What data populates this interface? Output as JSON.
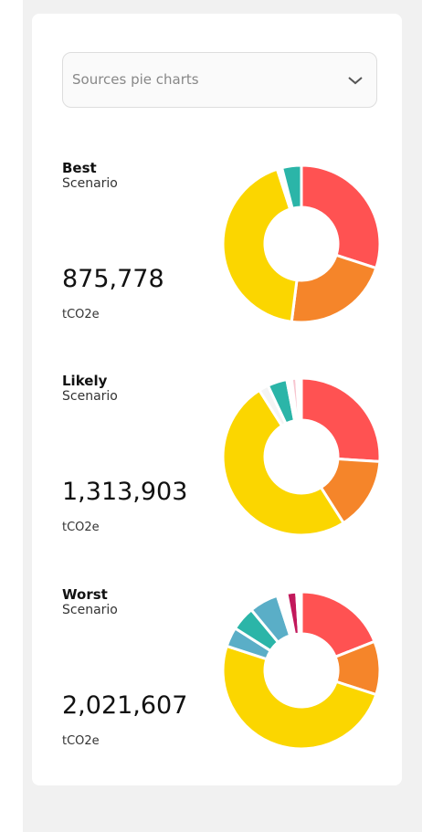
{
  "dropdown": {
    "label": "Sources pie charts"
  },
  "scenarios": [
    {
      "title": "Best",
      "subtitle": "Scenario",
      "value": "875,778",
      "unit": "tCO2e",
      "chart_data": {
        "type": "pie",
        "values": [
          30,
          22,
          43,
          1,
          4
        ],
        "colors": [
          "#ff5252",
          "#f5852a",
          "#fbd600",
          "#ffffff",
          "#2bb5a8"
        ]
      }
    },
    {
      "title": "Likely",
      "subtitle": "Scenario",
      "value": "1,313,903",
      "unit": "tCO2e",
      "chart_data": {
        "type": "pie",
        "values": [
          26,
          15,
          50,
          2,
          4,
          1,
          1,
          1
        ],
        "colors": [
          "#ff5252",
          "#f5852a",
          "#fbd600",
          "#f4f4f4",
          "#2bb5a8",
          "#ffffff",
          "#f7c6d0",
          "#ffffff"
        ]
      }
    },
    {
      "title": "Worst",
      "subtitle": "Scenario",
      "value": "2,021,607",
      "unit": "tCO2e",
      "chart_data": {
        "type": "pie",
        "values": [
          19,
          11,
          50,
          4,
          5,
          6,
          2,
          2,
          1
        ],
        "colors": [
          "#ff5252",
          "#f5852a",
          "#fbd600",
          "#5aaec7",
          "#2bb5a8",
          "#5aaec7",
          "#ffffff",
          "#c2185b",
          "#ffffff"
        ]
      }
    }
  ]
}
